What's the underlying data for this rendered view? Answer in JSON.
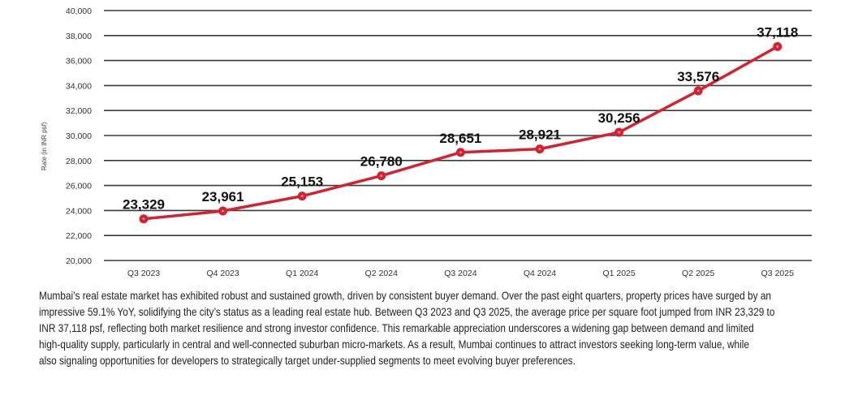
{
  "chart_data": {
    "type": "line",
    "title": "",
    "xlabel": "",
    "ylabel": "Rate (in INR psf)",
    "categories": [
      "Q3 2023",
      "Q4 2023",
      "Q1 2024",
      "Q2 2024",
      "Q3 2024",
      "Q4 2024",
      "Q1 2025",
      "Q2 2025",
      "Q3 2025"
    ],
    "series": [
      {
        "name": "Rate",
        "values": [
          23329,
          23961,
          25153,
          26780,
          28651,
          28921,
          30256,
          33576,
          37118
        ],
        "color": "#d42330"
      }
    ],
    "data_labels": [
      "23,329",
      "23,961",
      "25,153",
      "26,780",
      "28,651",
      "28,921",
      "30,256",
      "33,576",
      "37,118"
    ],
    "ylim": [
      20000,
      40000
    ],
    "yticks": [
      20000,
      22000,
      24000,
      26000,
      28000,
      30000,
      32000,
      34000,
      36000,
      38000,
      40000
    ],
    "ytick_labels": [
      "20,000",
      "22,000",
      "24,000",
      "26,000",
      "28,000",
      "30,000",
      "32,000",
      "34,000",
      "36,000",
      "38,000",
      "40,000"
    ],
    "grid": true,
    "legend": "none"
  },
  "paragraph": {
    "lines": [
      "Mumbai’s real estate market has exhibited robust and sustained growth, driven by consistent buyer demand. Over the past eight quarters, property prices have surged by an",
      "impressive 59.1% YoY, solidifying the city’s status as a leading real estate hub. Between Q3 2023 and Q3 2025, the average price per square foot jumped from INR 23,329 to",
      "INR 37,118 psf, reflecting both market resilience and strong investor confidence. This remarkable appreciation underscores a widening gap between demand and limited",
      "high-quality supply, particularly in central and well-connected suburban micro-markets. As a result, Mumbai continues to attract investors seeking long-term value, while",
      "also signaling opportunities for developers to strategically target under-supplied segments to meet evolving buyer preferences."
    ]
  }
}
